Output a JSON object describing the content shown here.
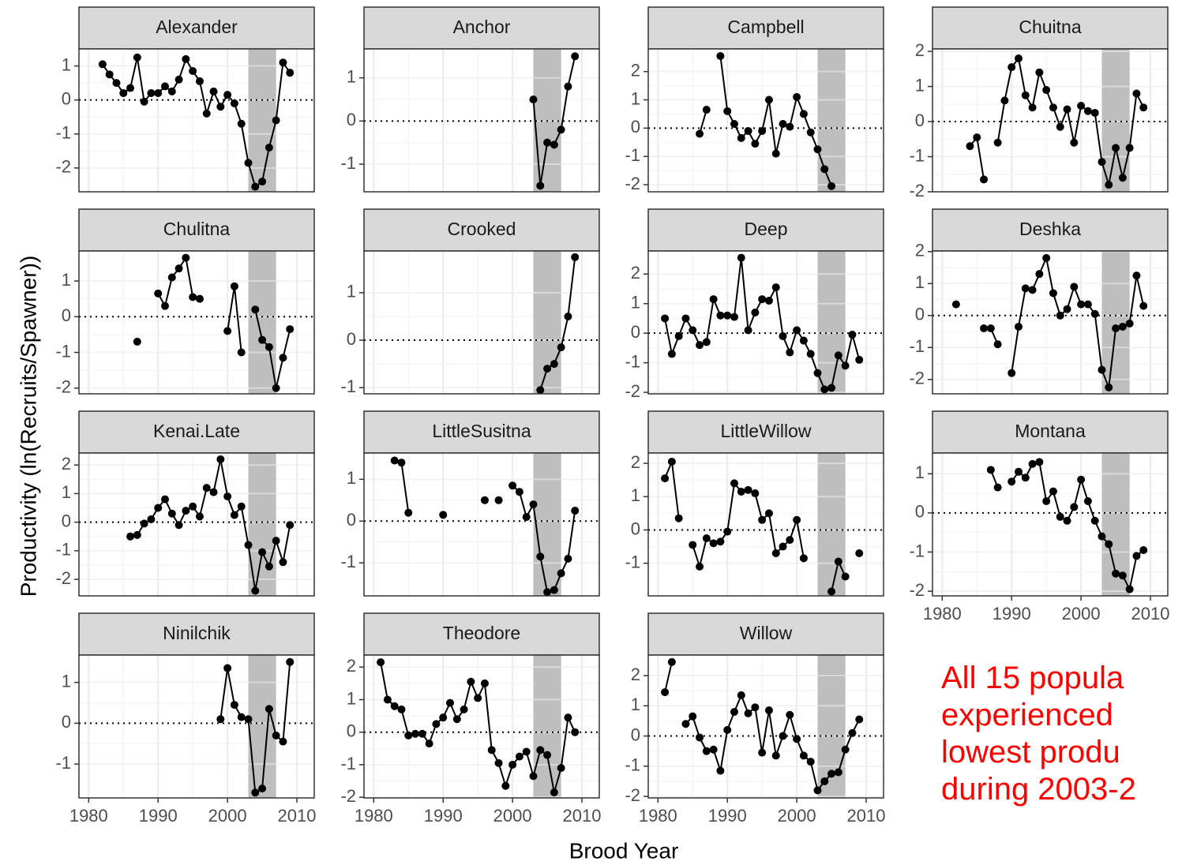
{
  "facet": {
    "x_label": "Brood Year",
    "y_label": "Productivity (ln(Recruits/Spawner))",
    "xlim": [
      1978.6,
      2012.5
    ],
    "xticks": [
      1980,
      1990,
      2000,
      2010
    ],
    "highlight": [
      2003,
      2007
    ],
    "reference_line": 0,
    "color": "#000000",
    "highlight_color": "#bebebe",
    "grid": true
  },
  "annotation": [
    "All 15 popula",
    "experienced",
    "lowest produ",
    "during 2003-2"
  ],
  "chart_data": [
    {
      "type": "line",
      "title": "Alexander",
      "x": [
        1982,
        1983,
        1984,
        1985,
        1986,
        1987,
        1988,
        1989,
        1990,
        1991,
        1992,
        1993,
        1994,
        1995,
        1996,
        1997,
        1998,
        1999,
        2000,
        2001,
        2002,
        2003,
        2004,
        2005,
        2006,
        2007,
        2008,
        2009
      ],
      "values": [
        1.05,
        0.75,
        0.5,
        0.2,
        0.35,
        1.25,
        -0.05,
        0.2,
        0.2,
        0.4,
        0.25,
        0.6,
        1.2,
        0.85,
        0.55,
        -0.4,
        0.25,
        -0.2,
        0.15,
        -0.1,
        -0.7,
        -1.85,
        -2.55,
        -2.4,
        -1.4,
        -0.6,
        1.1,
        0.8
      ],
      "ylim": [
        -2.7,
        1.5
      ],
      "yticks": [
        -2,
        -1,
        0,
        1
      ]
    },
    {
      "type": "line",
      "title": "Anchor",
      "x": [
        2003,
        2004,
        2005,
        2006,
        2007,
        2008,
        2009
      ],
      "values": [
        0.5,
        -1.5,
        -0.5,
        -0.55,
        -0.2,
        0.8,
        1.5
      ],
      "ylim": [
        -1.64,
        1.67
      ],
      "yticks": [
        -1,
        0,
        1
      ]
    },
    {
      "type": "line",
      "title": "Campbell",
      "x": [
        1986,
        1987,
        1988,
        1989,
        1990,
        1991,
        1992,
        1993,
        1994,
        1995,
        1996,
        1997,
        1998,
        1999,
        2000,
        2001,
        2002,
        2003,
        2004,
        2005
      ],
      "values": [
        -0.2,
        0.65,
        null,
        2.55,
        0.6,
        0.15,
        -0.35,
        -0.1,
        -0.55,
        -0.1,
        1.0,
        -0.9,
        0.15,
        0.05,
        1.1,
        0.5,
        -0.15,
        -0.75,
        -1.45,
        -2.05
      ],
      "ylim": [
        -2.25,
        2.8
      ],
      "yticks": [
        -2,
        -1,
        0,
        1,
        2
      ]
    },
    {
      "type": "line",
      "title": "Chuitna",
      "x": [
        1984,
        1985,
        1986,
        1987,
        1988,
        1989,
        1990,
        1991,
        1992,
        1993,
        1994,
        1995,
        1996,
        1997,
        1998,
        1999,
        2000,
        2001,
        2002,
        2003,
        2004,
        2005,
        2006,
        2007,
        2008,
        2009
      ],
      "values": [
        -0.7,
        -0.45,
        -1.65,
        null,
        -0.6,
        0.6,
        1.55,
        1.8,
        0.75,
        0.4,
        1.4,
        0.9,
        0.4,
        -0.15,
        0.35,
        -0.6,
        0.45,
        0.3,
        0.25,
        -1.15,
        -1.8,
        -0.75,
        -1.6,
        -0.75,
        0.8,
        0.4
      ],
      "ylim": [
        -2.0,
        2.07
      ],
      "yticks": [
        -2,
        -1,
        0,
        1,
        2
      ]
    },
    {
      "type": "line",
      "title": "Chulitna",
      "x": [
        1987,
        1988,
        1989,
        1990,
        1991,
        1992,
        1993,
        1994,
        1995,
        1996,
        1997,
        1998,
        1999,
        2000,
        2001,
        2002,
        2003,
        2004,
        2005,
        2006,
        2007,
        2008,
        2009
      ],
      "values": [
        -0.7,
        null,
        null,
        0.65,
        0.3,
        1.1,
        1.35,
        1.65,
        0.55,
        0.5,
        null,
        null,
        null,
        -0.4,
        0.85,
        -1.0,
        null,
        0.2,
        -0.65,
        -0.85,
        -2.0,
        -1.15,
        -0.35
      ],
      "ylim": [
        -2.16,
        1.84
      ],
      "yticks": [
        -2,
        -1,
        0,
        1
      ]
    },
    {
      "type": "line",
      "title": "Crooked",
      "x": [
        2004,
        2005,
        2006,
        2007,
        2008,
        2009
      ],
      "values": [
        -1.05,
        -0.6,
        -0.5,
        -0.15,
        0.5,
        1.75
      ],
      "ylim": [
        -1.13,
        1.88
      ],
      "yticks": [
        -1,
        0,
        1
      ]
    },
    {
      "type": "line",
      "title": "Deep",
      "x": [
        1981,
        1982,
        1983,
        1984,
        1985,
        1986,
        1987,
        1988,
        1989,
        1990,
        1991,
        1992,
        1993,
        1994,
        1995,
        1996,
        1997,
        1998,
        1999,
        2000,
        2001,
        2002,
        2003,
        2004,
        2005,
        2006,
        2007,
        2008,
        2009
      ],
      "values": [
        0.5,
        -0.7,
        -0.1,
        0.5,
        0.1,
        -0.4,
        -0.3,
        1.15,
        0.6,
        0.6,
        0.55,
        2.55,
        0.1,
        0.7,
        1.15,
        1.1,
        1.55,
        -0.1,
        -0.65,
        0.1,
        -0.25,
        -0.7,
        -1.35,
        -1.9,
        -1.85,
        -0.75,
        -1.1,
        -0.05,
        -0.9
      ],
      "ylim": [
        -2.05,
        2.78
      ],
      "yticks": [
        -2,
        -1,
        0,
        1,
        2
      ]
    },
    {
      "type": "line",
      "title": "Deshka",
      "x": [
        1982,
        1983,
        1984,
        1985,
        1986,
        1987,
        1988,
        1989,
        1990,
        1991,
        1992,
        1993,
        1994,
        1995,
        1996,
        1997,
        1998,
        1999,
        2000,
        2001,
        2002,
        2003,
        2004,
        2005,
        2006,
        2007,
        2008,
        2009
      ],
      "values": [
        0.35,
        null,
        null,
        null,
        -0.4,
        -0.4,
        -0.9,
        null,
        -1.8,
        -0.35,
        0.85,
        0.8,
        1.3,
        1.8,
        0.7,
        0.0,
        0.2,
        0.9,
        0.35,
        0.35,
        0.05,
        -1.7,
        -2.25,
        -0.4,
        -0.35,
        -0.25,
        1.25,
        0.3
      ],
      "ylim": [
        -2.45,
        2.02
      ],
      "yticks": [
        -2,
        -1,
        0,
        1,
        2
      ]
    },
    {
      "type": "line",
      "title": "Kenai.Late",
      "x": [
        1986,
        1987,
        1988,
        1989,
        1990,
        1991,
        1992,
        1993,
        1994,
        1995,
        1996,
        1997,
        1998,
        1999,
        2000,
        2001,
        2002,
        2003,
        2004,
        2005,
        2006,
        2007,
        2008,
        2009
      ],
      "values": [
        -0.5,
        -0.45,
        -0.05,
        0.1,
        0.5,
        0.8,
        0.3,
        -0.1,
        0.4,
        0.55,
        0.2,
        1.2,
        1.05,
        2.2,
        0.9,
        0.25,
        0.55,
        -0.8,
        -2.4,
        -1.05,
        -1.55,
        -0.65,
        -1.4,
        -0.1
      ],
      "ylim": [
        -2.58,
        2.42
      ],
      "yticks": [
        -2,
        -1,
        0,
        1,
        2
      ]
    },
    {
      "type": "line",
      "title": "LittleSusitna",
      "x": [
        1983,
        1984,
        1985,
        1986,
        1987,
        1988,
        1989,
        1990,
        1991,
        1992,
        1993,
        1994,
        1995,
        1996,
        1997,
        1998,
        1999,
        2000,
        2001,
        2002,
        2003,
        2004,
        2005,
        2006,
        2007,
        2008,
        2009
      ],
      "values": [
        1.45,
        1.4,
        0.2,
        null,
        null,
        null,
        null,
        0.15,
        null,
        null,
        null,
        null,
        null,
        0.5,
        null,
        0.5,
        null,
        0.85,
        0.7,
        0.1,
        0.4,
        -0.85,
        -1.7,
        -1.65,
        -1.25,
        -0.9,
        0.25
      ],
      "ylim": [
        -1.79,
        1.63
      ],
      "yticks": [
        -1,
        0,
        1
      ]
    },
    {
      "type": "line",
      "title": "LittleWillow",
      "x": [
        1981,
        1982,
        1983,
        1984,
        1985,
        1986,
        1987,
        1988,
        1989,
        1990,
        1991,
        1992,
        1993,
        1994,
        1995,
        1996,
        1997,
        1998,
        1999,
        2000,
        2001,
        2002,
        2003,
        2004,
        2005,
        2006,
        2007,
        2008,
        2009
      ],
      "values": [
        1.55,
        2.05,
        0.35,
        null,
        -0.45,
        -1.1,
        -0.25,
        -0.4,
        -0.35,
        -0.05,
        1.4,
        1.15,
        1.2,
        1.1,
        0.3,
        0.5,
        -0.7,
        -0.5,
        -0.3,
        0.3,
        -0.85,
        null,
        null,
        null,
        -1.85,
        -0.95,
        -1.4,
        null,
        -0.7
      ],
      "ylim": [
        -1.98,
        2.31
      ],
      "yticks": [
        -1,
        0,
        1,
        2
      ]
    },
    {
      "type": "line",
      "title": "Montana",
      "x": [
        1987,
        1988,
        1989,
        1990,
        1991,
        1992,
        1993,
        1994,
        1995,
        1996,
        1997,
        1998,
        1999,
        2000,
        2001,
        2002,
        2003,
        2004,
        2005,
        2006,
        2007,
        2008,
        2009
      ],
      "values": [
        1.1,
        0.65,
        null,
        0.8,
        1.05,
        0.9,
        1.25,
        1.3,
        0.3,
        0.55,
        -0.1,
        -0.2,
        0.15,
        0.85,
        0.3,
        -0.2,
        -0.6,
        -0.8,
        -1.55,
        -1.6,
        -1.95,
        -1.1,
        -0.95
      ],
      "ylim": [
        -2.12,
        1.53
      ],
      "yticks": [
        -2,
        -1,
        0,
        1
      ]
    },
    {
      "type": "line",
      "title": "Ninilchik",
      "x": [
        1999,
        2000,
        2001,
        2002,
        2003,
        2004,
        2005,
        2006,
        2007,
        2008,
        2009
      ],
      "values": [
        0.1,
        1.35,
        0.45,
        0.15,
        0.1,
        -1.7,
        -1.6,
        0.35,
        -0.3,
        -0.45,
        1.5
      ],
      "ylim": [
        -1.83,
        1.67
      ],
      "yticks": [
        -1,
        0,
        1
      ]
    },
    {
      "type": "line",
      "title": "Theodore",
      "x": [
        1981,
        1982,
        1983,
        1984,
        1985,
        1986,
        1987,
        1988,
        1989,
        1990,
        1991,
        1992,
        1993,
        1994,
        1995,
        1996,
        1997,
        1998,
        1999,
        2000,
        2001,
        2002,
        2003,
        2004,
        2005,
        2006,
        2007,
        2008,
        2009
      ],
      "values": [
        2.15,
        1.0,
        0.8,
        0.7,
        -0.1,
        -0.05,
        -0.05,
        -0.35,
        0.25,
        0.45,
        0.9,
        0.4,
        0.7,
        1.55,
        1.05,
        1.5,
        -0.55,
        -0.95,
        -1.65,
        -1.0,
        -0.75,
        -0.6,
        -1.35,
        -0.55,
        -0.7,
        -1.85,
        -1.1,
        0.45,
        0.0
      ],
      "ylim": [
        -2.02,
        2.37
      ],
      "yticks": [
        -2,
        -1,
        0,
        1,
        2
      ]
    },
    {
      "type": "line",
      "title": "Willow",
      "x": [
        1981,
        1982,
        1983,
        1984,
        1985,
        1986,
        1987,
        1988,
        1989,
        1990,
        1991,
        1992,
        1993,
        1994,
        1995,
        1996,
        1997,
        1998,
        1999,
        2000,
        2001,
        2002,
        2003,
        2004,
        2005,
        2006,
        2007,
        2008,
        2009
      ],
      "values": [
        1.45,
        2.45,
        null,
        0.4,
        0.65,
        -0.05,
        -0.5,
        -0.45,
        -1.15,
        0.2,
        0.8,
        1.35,
        0.75,
        0.95,
        -0.55,
        0.85,
        -0.65,
        0.0,
        0.7,
        -0.1,
        -0.65,
        -0.85,
        -1.8,
        -1.5,
        -1.25,
        -1.2,
        -0.45,
        0.1,
        0.55
      ],
      "ylim": [
        -2.05,
        2.68
      ],
      "yticks": [
        -2,
        -1,
        0,
        1,
        2
      ]
    }
  ]
}
